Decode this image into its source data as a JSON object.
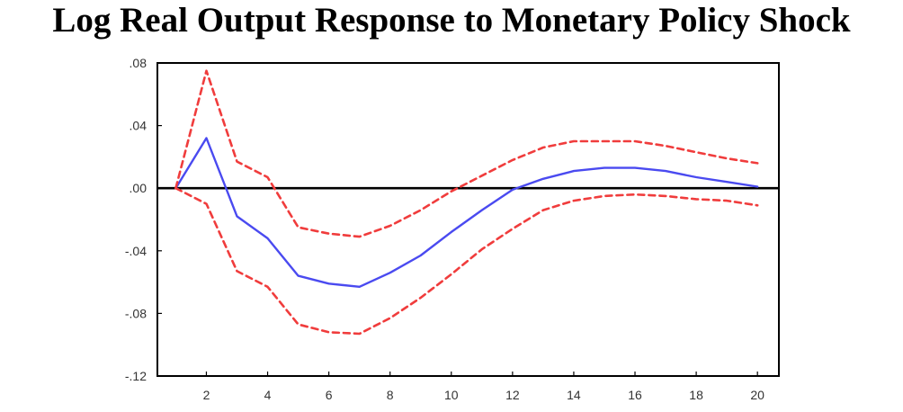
{
  "chart_data": {
    "type": "line",
    "title": "Log Real Output Response to Monetary Policy Shock",
    "xlabel": "",
    "ylabel": "",
    "x": [
      1,
      2,
      3,
      4,
      5,
      6,
      7,
      8,
      9,
      10,
      11,
      12,
      13,
      14,
      15,
      16,
      17,
      18,
      19,
      20
    ],
    "xlim": [
      0.4,
      20.7
    ],
    "ylim": [
      -0.12,
      0.08
    ],
    "x_ticks": [
      {
        "value": 2,
        "label": "2"
      },
      {
        "value": 4,
        "label": "4"
      },
      {
        "value": 6,
        "label": "6"
      },
      {
        "value": 8,
        "label": "8"
      },
      {
        "value": 10,
        "label": "10"
      },
      {
        "value": 12,
        "label": "12"
      },
      {
        "value": 14,
        "label": "14"
      },
      {
        "value": 16,
        "label": "16"
      },
      {
        "value": 18,
        "label": "18"
      },
      {
        "value": 20,
        "label": "20"
      }
    ],
    "y_ticks": [
      {
        "value": 0.08,
        "label": ".08"
      },
      {
        "value": 0.04,
        "label": ".04"
      },
      {
        "value": 0.0,
        "label": ".00"
      },
      {
        "value": -0.04,
        "label": "-.04"
      },
      {
        "value": -0.08,
        "label": "-.08"
      },
      {
        "value": -0.12,
        "label": "-.12"
      }
    ],
    "grid": false,
    "zero_line": true,
    "series": [
      {
        "role": "response",
        "color": "#4a4af0",
        "style": "solid",
        "values": [
          0.0,
          0.032,
          -0.018,
          -0.032,
          -0.056,
          -0.061,
          -0.063,
          -0.054,
          -0.043,
          -0.028,
          -0.014,
          -0.001,
          0.006,
          0.011,
          0.013,
          0.013,
          0.011,
          0.007,
          0.004,
          0.001
        ]
      },
      {
        "role": "upper-band",
        "color": "#f03c3c",
        "style": "dashed",
        "values": [
          0.0,
          0.075,
          0.017,
          0.007,
          -0.025,
          -0.029,
          -0.031,
          -0.024,
          -0.014,
          -0.002,
          0.008,
          0.018,
          0.026,
          0.03,
          0.03,
          0.03,
          0.027,
          0.023,
          0.019,
          0.016
        ]
      },
      {
        "role": "lower-band",
        "color": "#f03c3c",
        "style": "dashed",
        "values": [
          0.0,
          -0.01,
          -0.053,
          -0.063,
          -0.087,
          -0.092,
          -0.093,
          -0.083,
          -0.07,
          -0.055,
          -0.039,
          -0.026,
          -0.014,
          -0.008,
          -0.005,
          -0.004,
          -0.005,
          -0.007,
          -0.008,
          -0.011
        ]
      }
    ]
  }
}
